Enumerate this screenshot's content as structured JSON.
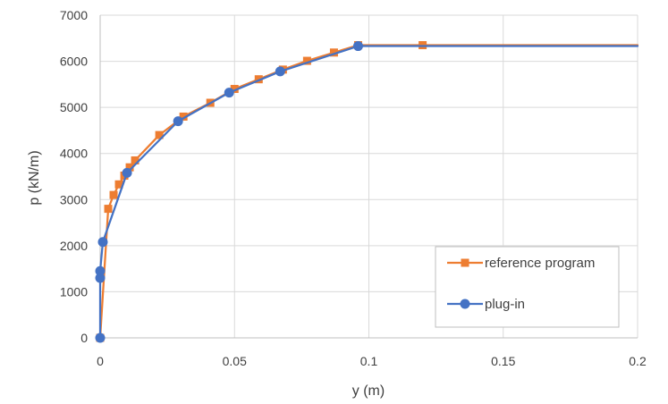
{
  "chart_data": {
    "type": "scatter",
    "title": "",
    "xlabel": "y (m)",
    "ylabel": "p (kN/m)",
    "xlim": [
      0,
      0.2
    ],
    "ylim": [
      0,
      7000
    ],
    "xticks": [
      0,
      0.05,
      0.1,
      0.15,
      0.2
    ],
    "xtick_labels": [
      "0",
      "0.05",
      "0.1",
      "0.15",
      "0.2"
    ],
    "yticks": [
      0,
      1000,
      2000,
      3000,
      4000,
      5000,
      6000,
      7000
    ],
    "ytick_labels": [
      "0",
      "1000",
      "2000",
      "3000",
      "4000",
      "5000",
      "6000",
      "7000"
    ],
    "grid": true,
    "legend_position": "bottom-right",
    "series": [
      {
        "name": "reference program",
        "color": "#ED7D31",
        "marker": "square",
        "line_extends_to_xmax": true,
        "points": [
          [
            0,
            0
          ],
          [
            0.003,
            2800
          ],
          [
            0.005,
            3100
          ],
          [
            0.007,
            3330
          ],
          [
            0.009,
            3520
          ],
          [
            0.011,
            3700
          ],
          [
            0.013,
            3850
          ],
          [
            0.022,
            4400
          ],
          [
            0.031,
            4800
          ],
          [
            0.041,
            5100
          ],
          [
            0.05,
            5400
          ],
          [
            0.059,
            5610
          ],
          [
            0.068,
            5820
          ],
          [
            0.077,
            6010
          ],
          [
            0.087,
            6190
          ],
          [
            0.096,
            6350
          ],
          [
            0.12,
            6350
          ]
        ]
      },
      {
        "name": "plug-in",
        "color": "#4472C4",
        "marker": "circle",
        "line_extends_to_xmax": true,
        "points": [
          [
            0,
            0
          ],
          [
            0,
            1300
          ],
          [
            0,
            1450
          ],
          [
            0.001,
            2080
          ],
          [
            0.01,
            3580
          ],
          [
            0.029,
            4700
          ],
          [
            0.048,
            5320
          ],
          [
            0.067,
            5780
          ],
          [
            0.096,
            6330
          ]
        ]
      }
    ]
  }
}
